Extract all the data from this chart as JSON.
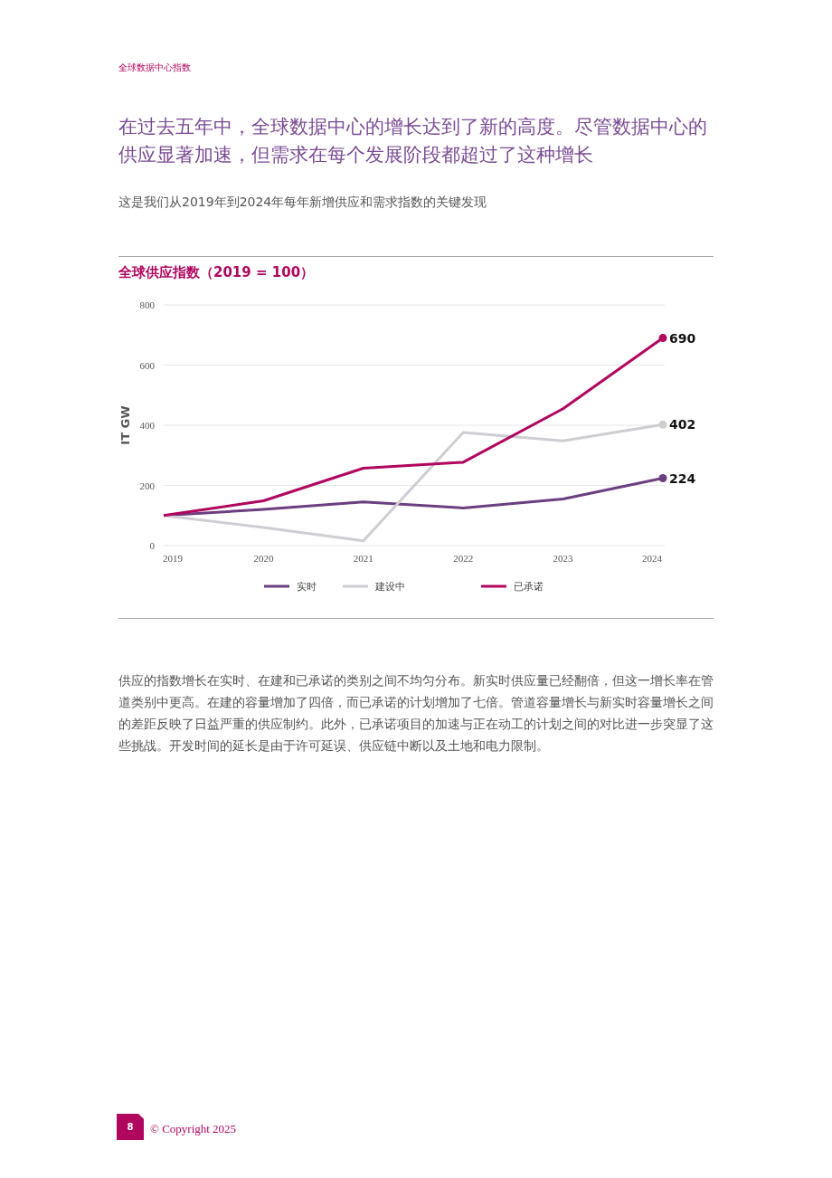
{
  "chart_data": {
    "type": "line",
    "title": "在过去五年中，全球数据中心的增长达到了新的高度。尽管数据中心的供应显著加速，但需求在每个发展阶段都超过了这种增长",
    "subtitle": "这是我们从2019年到2024年每年新增供应和需求指数的关键发现",
    "ylabel": "IT GW",
    "annotations": [
      "全球数据中心指数",
      "全球供应指数（2019 = 100）",
      "供应的指数增长在实时、在建和已承诺的类别之间不均匀分布。新实时供应量已经翻倍，但这一增长率在管道类别中更高。在建的容量增加了四倍，而已承诺的计划增加了七倍。管道容量增长与新实时容量增长之间的差距反映了日益严重的供应制约。此外，已承诺项目的加速与正在动工的计划之间的对比进一步突显了这些挑战。开发时间的延长是由于许可延误、供应链中断以及土地和电力限制。",
      "8",
      "© Copyright 2025"
    ],
    "x": [
      2019,
      2020,
      2021,
      2022,
      2023,
      2024
    ],
    "xlim": [
      2019,
      2024
    ],
    "xticks": [
      2019,
      2020,
      2021,
      2022,
      2023,
      2024
    ],
    "ylim": [
      0,
      800
    ],
    "yticks": [
      0,
      200,
      400,
      600,
      800
    ],
    "grid": "y",
    "legend": "bottom",
    "series": [
      {
        "name": "实时",
        "color": "#6b3f80",
        "values": [
          100,
          120,
          145,
          125,
          155,
          224
        ],
        "value_labels": [
          null,
          null,
          null,
          null,
          null,
          "224"
        ]
      },
      {
        "name": "建设中",
        "color": "#cfcdd4",
        "values": [
          100,
          60,
          16,
          376,
          348,
          402
        ],
        "value_labels": [
          null,
          null,
          null,
          null,
          null,
          "402"
        ]
      },
      {
        "name": "已承诺",
        "color": "#b0065e",
        "values": [
          100,
          149,
          257,
          277,
          455,
          690
        ],
        "value_labels": [
          null,
          null,
          null,
          null,
          null,
          "690"
        ]
      }
    ]
  }
}
